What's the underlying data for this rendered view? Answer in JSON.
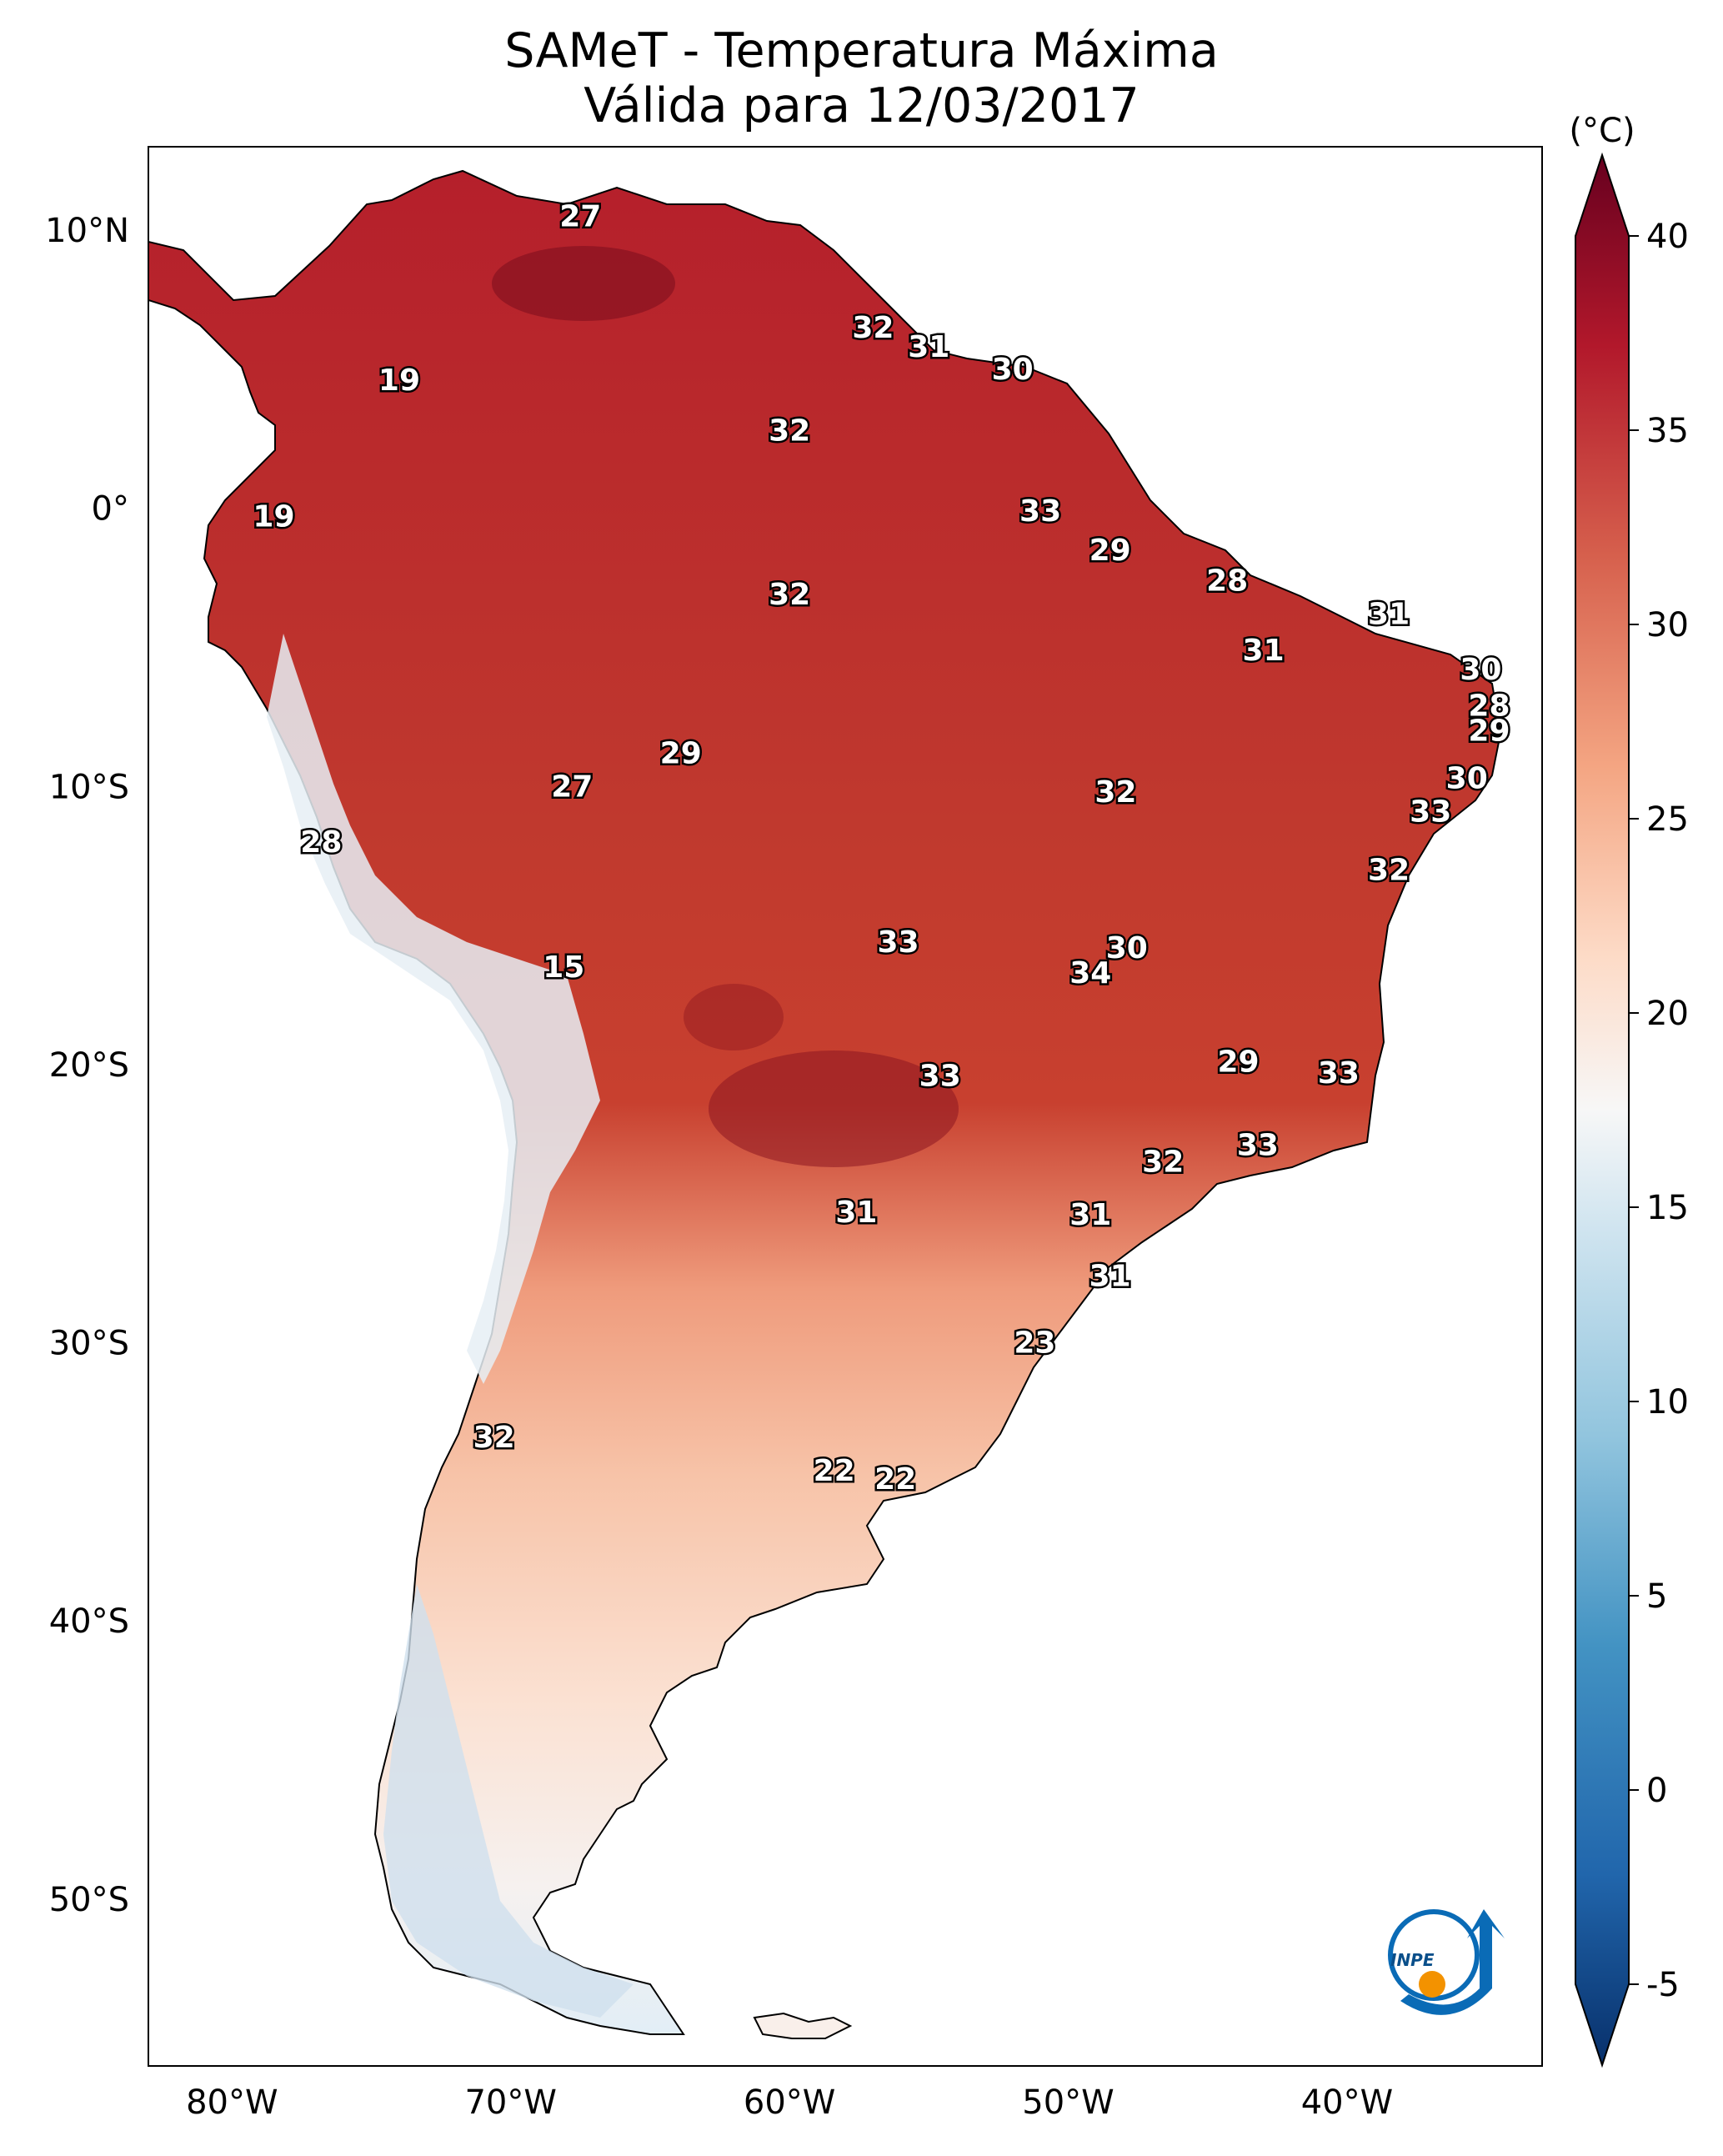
{
  "title": {
    "line1": "SAMeT - Temperatura Máxima",
    "line2": "Válida para 12/03/2017"
  },
  "map": {
    "lat_ticks": [
      "10°N",
      "0°",
      "10°S",
      "20°S",
      "30°S",
      "40°S",
      "50°S"
    ],
    "lon_ticks": [
      "80°W",
      "70°W",
      "60°W",
      "50°W",
      "40°W"
    ],
    "lat_range": [
      -56,
      13
    ],
    "lon_range": [
      -83,
      -33
    ],
    "extent_note_hidden": ""
  },
  "colorbar": {
    "unit": "(°C)",
    "ticks": [
      "40",
      "35",
      "30",
      "25",
      "20",
      "15",
      "10",
      "5",
      "0",
      "-5"
    ],
    "range": [
      -5,
      40
    ],
    "colors": [
      "#08306b",
      "#2166ac",
      "#4393c3",
      "#92c5de",
      "#d1e5f0",
      "#f7f7f7",
      "#fddbc7",
      "#f4a582",
      "#d6604d",
      "#b2182b",
      "#67001f"
    ]
  },
  "labels": [
    {
      "text": "27",
      "lon": -67.5,
      "lat": 10.5
    },
    {
      "text": "32",
      "lon": -57.0,
      "lat": 6.5
    },
    {
      "text": "31",
      "lon": -55.0,
      "lat": 5.8
    },
    {
      "text": "30",
      "lon": -52.0,
      "lat": 5.0
    },
    {
      "text": "19",
      "lon": -74.0,
      "lat": 4.6
    },
    {
      "text": "32",
      "lon": -60.0,
      "lat": 2.8
    },
    {
      "text": "19",
      "lon": -78.5,
      "lat": -0.3
    },
    {
      "text": "33",
      "lon": -51.0,
      "lat": -0.1
    },
    {
      "text": "29",
      "lon": -48.5,
      "lat": -1.5
    },
    {
      "text": "32",
      "lon": -60.0,
      "lat": -3.1
    },
    {
      "text": "28",
      "lon": -44.3,
      "lat": -2.6
    },
    {
      "text": "31",
      "lon": -38.5,
      "lat": -3.8
    },
    {
      "text": "31",
      "lon": -43.0,
      "lat": -5.1
    },
    {
      "text": "30",
      "lon": -35.2,
      "lat": -5.8
    },
    {
      "text": "28",
      "lon": -34.9,
      "lat": -7.1
    },
    {
      "text": "29",
      "lon": -34.9,
      "lat": -8.0
    },
    {
      "text": "29",
      "lon": -63.9,
      "lat": -8.8
    },
    {
      "text": "27",
      "lon": -67.8,
      "lat": -10.0
    },
    {
      "text": "30",
      "lon": -35.7,
      "lat": -9.7
    },
    {
      "text": "32",
      "lon": -48.3,
      "lat": -10.2
    },
    {
      "text": "33",
      "lon": -37.0,
      "lat": -10.9
    },
    {
      "text": "28",
      "lon": -76.8,
      "lat": -12.0
    },
    {
      "text": "32",
      "lon": -38.5,
      "lat": -13.0
    },
    {
      "text": "33",
      "lon": -56.1,
      "lat": -15.6
    },
    {
      "text": "30",
      "lon": -47.9,
      "lat": -15.8
    },
    {
      "text": "34",
      "lon": -49.2,
      "lat": -16.7
    },
    {
      "text": "15",
      "lon": -68.1,
      "lat": -16.5
    },
    {
      "text": "29",
      "lon": -43.9,
      "lat": -19.9
    },
    {
      "text": "33",
      "lon": -40.3,
      "lat": -20.3
    },
    {
      "text": "33",
      "lon": -54.6,
      "lat": -20.4
    },
    {
      "text": "33",
      "lon": -43.2,
      "lat": -22.9
    },
    {
      "text": "32",
      "lon": -46.6,
      "lat": -23.5
    },
    {
      "text": "31",
      "lon": -57.6,
      "lat": -25.3
    },
    {
      "text": "31",
      "lon": -49.2,
      "lat": -25.4
    },
    {
      "text": "31",
      "lon": -48.5,
      "lat": -27.6
    },
    {
      "text": "23",
      "lon": -51.2,
      "lat": -30.0
    },
    {
      "text": "32",
      "lon": -70.6,
      "lat": -33.4
    },
    {
      "text": "22",
      "lon": -58.4,
      "lat": -34.6
    },
    {
      "text": "22",
      "lon": -56.2,
      "lat": -34.9
    }
  ],
  "logo": {
    "text": "INPE"
  }
}
